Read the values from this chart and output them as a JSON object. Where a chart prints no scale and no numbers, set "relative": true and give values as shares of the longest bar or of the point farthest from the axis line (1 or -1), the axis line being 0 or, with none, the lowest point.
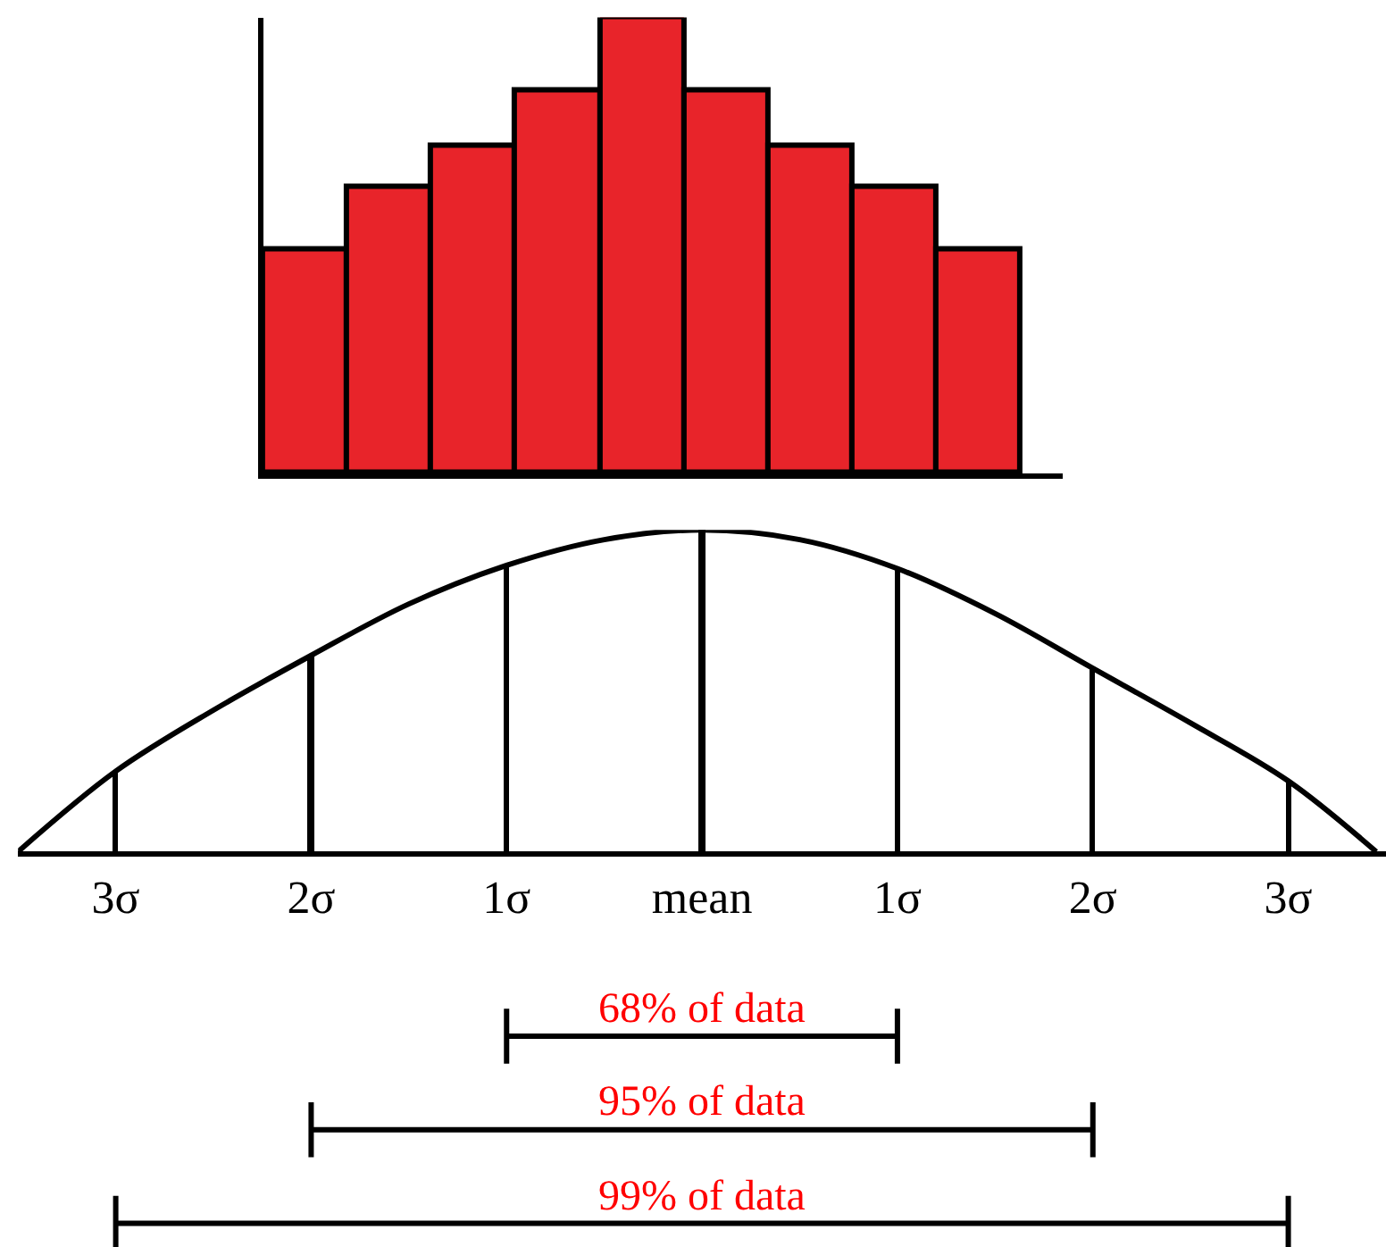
{
  "chart_data": [
    {
      "type": "bar",
      "relative": true,
      "categories": [
        null,
        null,
        null,
        null,
        null,
        null,
        null,
        null,
        null
      ],
      "values": [
        0.49,
        0.63,
        0.72,
        0.84,
        1,
        0.84,
        0.72,
        0.63,
        0.49
      ],
      "color": "#e8242a",
      "tick_labels": false
    },
    {
      "type": "line",
      "relative": true,
      "xlim": [
        -3.5,
        3.5
      ],
      "xticks": [
        {
          "value": -3,
          "label": "3σ"
        },
        {
          "value": -2,
          "label": "2σ"
        },
        {
          "value": -1,
          "label": "1σ"
        },
        {
          "value": 0,
          "label": "mean"
        },
        {
          "value": 1,
          "label": "1σ"
        },
        {
          "value": 2,
          "label": "2σ"
        },
        {
          "value": 3,
          "label": "3σ"
        }
      ],
      "tick_labels": "x",
      "marker": "none",
      "line_style": "solid",
      "series": [
        {
          "type": "line",
          "color": "#000000",
          "x": [
            -3.5,
            -3,
            -2.5,
            -2,
            -1.5,
            -1,
            -0.5,
            0,
            0.5,
            1,
            1.5,
            2,
            2.5,
            3,
            3.45
          ],
          "values": [
            0,
            0.25,
            0.44,
            0.61,
            0.77,
            0.89,
            0.97,
            1,
            0.97,
            0.88,
            0.74,
            0.57,
            0.4,
            0.22,
            0
          ]
        },
        {
          "type": "bar",
          "color": "#000000",
          "x": [
            -3,
            -2,
            -1,
            0,
            1,
            2,
            3
          ],
          "values": [
            0.25,
            0.61,
            0.89,
            1,
            0.88,
            0.57,
            0.22
          ]
        }
      ],
      "annotations": [
        "68% of data",
        "95% of data",
        "99% of data"
      ]
    }
  ]
}
